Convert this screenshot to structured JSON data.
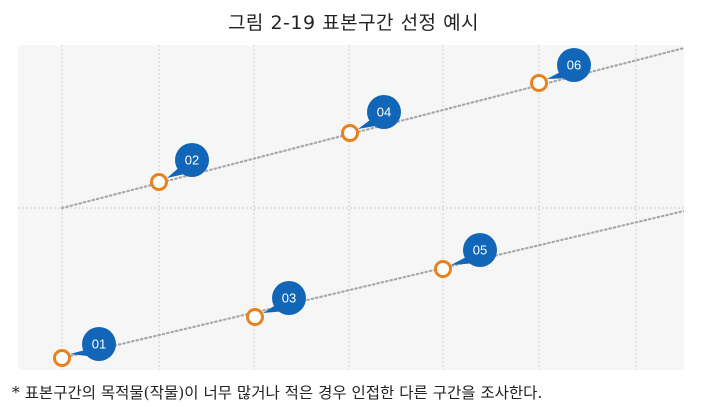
{
  "figure": {
    "title": "그림 2-19 표본구간 선정 예시",
    "footnote": "* 표본구간의 목적물(작물)이 너무 많거나 적은 경우 인접한 다른 구간을 조사한다."
  },
  "diagram": {
    "colors": {
      "panel_bg": "#f6f6f6",
      "grid": "#cfcfcf",
      "track": "#a9a9a9",
      "marker_stroke": "#e8821e",
      "marker_fill": "#ffffff",
      "badge": "#1266b8",
      "badge_text": "#ffffff"
    },
    "markers": [
      {
        "label": "01",
        "track": "lower"
      },
      {
        "label": "02",
        "track": "upper"
      },
      {
        "label": "03",
        "track": "lower"
      },
      {
        "label": "04",
        "track": "upper"
      },
      {
        "label": "05",
        "track": "lower"
      },
      {
        "label": "06",
        "track": "upper"
      }
    ]
  }
}
